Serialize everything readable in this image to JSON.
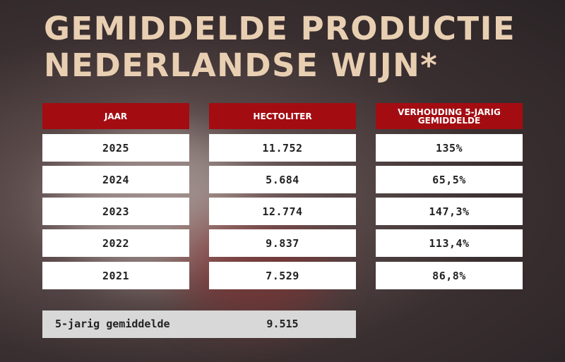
{
  "title": [
    "GEMIDDELDE PRODUCTIE",
    "NEDERLANDSE WIJN*"
  ],
  "table": {
    "header": [
      "JAAR",
      "HECTOLITER",
      "VERHOUDING 5-JARIG GEMIDDELDE"
    ],
    "rows": [
      [
        "2025",
        "11.752",
        "135%"
      ],
      [
        "2024",
        "5.684",
        "65,5%"
      ],
      [
        "2023",
        "12.774",
        "147,3%"
      ],
      [
        "2022",
        "9.837",
        "113,4%"
      ],
      [
        "2021",
        "7.529",
        "86,8%"
      ]
    ]
  },
  "average": {
    "label": "5-jarig gemiddelde",
    "value": "9.515"
  }
}
